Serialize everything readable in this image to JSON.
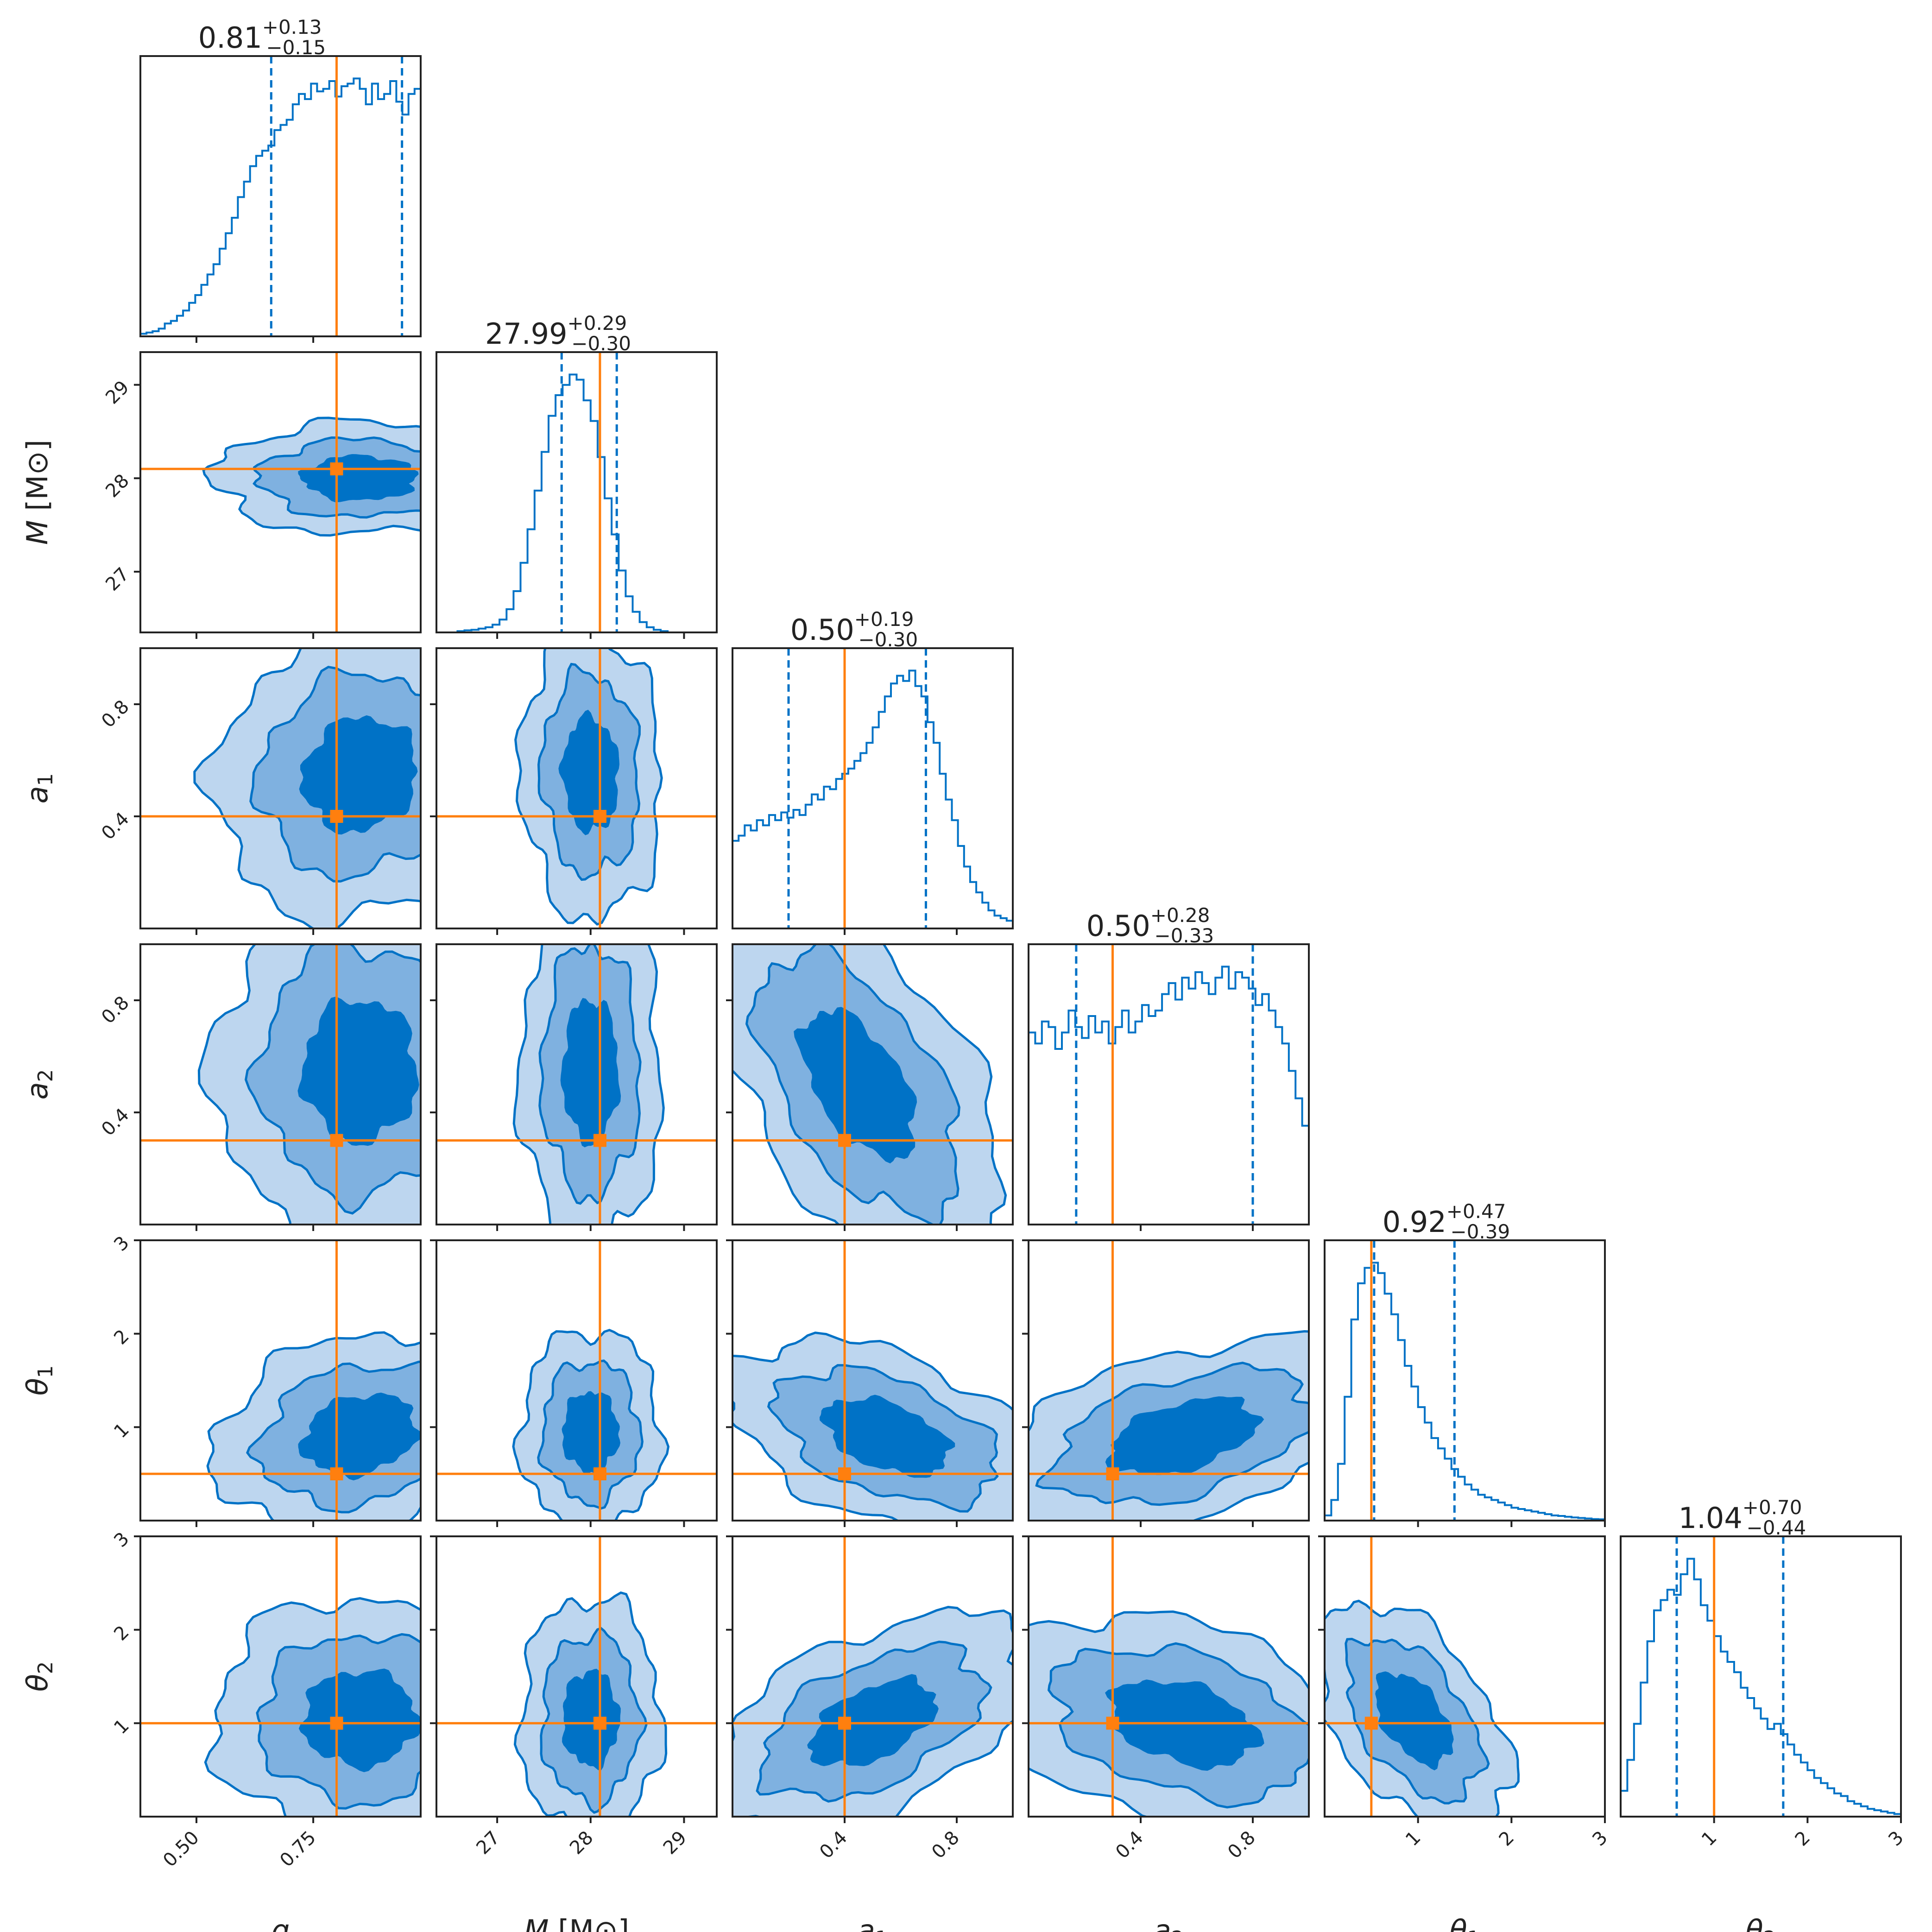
{
  "chart_data": {
    "type": "corner",
    "title": "",
    "colors": {
      "posterior": "#0072c6",
      "level_outer": "#bdd6ef",
      "level_mid": "#7fb1e0",
      "level_inner": "#0072c6",
      "truth": "#ff7f0e",
      "frame": "#222222"
    },
    "parameters": [
      {
        "key": "q",
        "label": "q",
        "subscript": "",
        "unit": "",
        "range": [
          0.38,
          0.98
        ],
        "ticks": [
          0.5,
          0.75
        ],
        "tick_labels": [
          "0.50",
          "0.75"
        ],
        "truth": 0.8,
        "median": 0.81,
        "plus": "+0.13",
        "minus": "−0.15",
        "median_label": "0.81",
        "q16": 0.66,
        "q84": 0.94,
        "show_ytick_labels": false
      },
      {
        "key": "M",
        "label": "M",
        "subscript": "",
        "unit": "[M⊙]",
        "range": [
          26.35,
          29.35
        ],
        "ticks": [
          27,
          28,
          29
        ],
        "tick_labels": [
          "27",
          "28",
          "29"
        ],
        "truth": 28.1,
        "median": 27.99,
        "plus": "+0.29",
        "minus": "−0.30",
        "median_label": "27.99",
        "q16": 27.69,
        "q84": 28.28,
        "show_ytick_labels": true
      },
      {
        "key": "a1",
        "label": "a",
        "subscript": "1",
        "unit": "",
        "range": [
          0.0,
          1.0
        ],
        "ticks": [
          0.4,
          0.8
        ],
        "tick_labels": [
          "0.4",
          "0.8"
        ],
        "truth": 0.4,
        "median": 0.5,
        "plus": "+0.19",
        "minus": "−0.30",
        "median_label": "0.50",
        "q16": 0.2,
        "q84": 0.69,
        "show_ytick_labels": true
      },
      {
        "key": "a2",
        "label": "a",
        "subscript": "2",
        "unit": "",
        "range": [
          0.0,
          1.0
        ],
        "ticks": [
          0.4,
          0.8
        ],
        "tick_labels": [
          "0.4",
          "0.8"
        ],
        "truth": 0.3,
        "median": 0.5,
        "plus": "+0.28",
        "minus": "−0.33",
        "median_label": "0.50",
        "q16": 0.17,
        "q84": 0.8,
        "show_ytick_labels": true
      },
      {
        "key": "theta1",
        "label": "θ",
        "subscript": "1",
        "unit": "",
        "range": [
          0.0,
          3.0
        ],
        "ticks": [
          1,
          2,
          3
        ],
        "tick_labels": [
          "1",
          "2",
          "3"
        ],
        "truth": 0.5,
        "median": 0.92,
        "plus": "+0.47",
        "minus": "−0.39",
        "median_label": "0.92",
        "q16": 0.53,
        "q84": 1.39,
        "show_ytick_labels": true
      },
      {
        "key": "theta2",
        "label": "θ",
        "subscript": "2",
        "unit": "",
        "range": [
          0.0,
          3.0
        ],
        "ticks": [
          1,
          2,
          3
        ],
        "tick_labels": [
          "1",
          "2",
          "3"
        ],
        "truth": 1.0,
        "median": 1.04,
        "plus": "+0.70",
        "minus": "−0.44",
        "median_label": "1.04",
        "q16": 0.6,
        "q84": 1.74,
        "show_ytick_labels": true
      }
    ],
    "histograms": [
      {
        "param": "q",
        "values": [
          0.01,
          0.015,
          0.02,
          0.03,
          0.05,
          0.06,
          0.08,
          0.1,
          0.13,
          0.16,
          0.2,
          0.24,
          0.28,
          0.34,
          0.4,
          0.46,
          0.54,
          0.6,
          0.66,
          0.7,
          0.72,
          0.74,
          0.8,
          0.82,
          0.84,
          0.9,
          0.94,
          0.92,
          0.98,
          0.95,
          0.96,
          0.99,
          0.93,
          0.97,
          0.98,
          1.0,
          0.96,
          0.9,
          0.98,
          0.92,
          0.94,
          0.99,
          0.91,
          0.86,
          0.94,
          0.96
        ]
      },
      {
        "param": "M",
        "values": [
          0.0,
          0.0,
          0.0,
          0.005,
          0.008,
          0.01,
          0.015,
          0.02,
          0.03,
          0.05,
          0.09,
          0.16,
          0.27,
          0.4,
          0.55,
          0.7,
          0.84,
          0.92,
          0.96,
          1.0,
          0.98,
          0.9,
          0.82,
          0.68,
          0.52,
          0.38,
          0.24,
          0.14,
          0.08,
          0.04,
          0.02,
          0.01,
          0.005,
          0.0,
          0.0,
          0.0,
          0.0,
          0.0,
          0.0,
          0.0
        ]
      },
      {
        "param": "a1",
        "values": [
          0.34,
          0.36,
          0.4,
          0.38,
          0.42,
          0.4,
          0.44,
          0.42,
          0.45,
          0.43,
          0.46,
          0.44,
          0.48,
          0.52,
          0.5,
          0.55,
          0.54,
          0.58,
          0.6,
          0.62,
          0.65,
          0.68,
          0.72,
          0.78,
          0.84,
          0.9,
          0.95,
          0.98,
          0.96,
          1.0,
          0.94,
          0.9,
          0.8,
          0.72,
          0.6,
          0.5,
          0.42,
          0.32,
          0.24,
          0.18,
          0.14,
          0.1,
          0.07,
          0.05,
          0.04,
          0.03
        ]
      },
      {
        "param": "a2",
        "values": [
          0.7,
          0.66,
          0.74,
          0.72,
          0.64,
          0.7,
          0.78,
          0.72,
          0.68,
          0.76,
          0.7,
          0.74,
          0.66,
          0.72,
          0.78,
          0.7,
          0.74,
          0.8,
          0.76,
          0.78,
          0.84,
          0.88,
          0.82,
          0.9,
          0.86,
          0.92,
          0.88,
          0.84,
          0.9,
          0.94,
          0.86,
          0.92,
          0.9,
          0.86,
          0.8,
          0.84,
          0.78,
          0.72,
          0.66,
          0.56,
          0.46,
          0.36
        ]
      },
      {
        "param": "theta1",
        "values": [
          0.02,
          0.08,
          0.22,
          0.48,
          0.78,
          0.92,
          0.98,
          1.0,
          0.96,
          0.88,
          0.8,
          0.7,
          0.6,
          0.52,
          0.44,
          0.38,
          0.32,
          0.28,
          0.24,
          0.2,
          0.17,
          0.14,
          0.12,
          0.1,
          0.09,
          0.08,
          0.07,
          0.06,
          0.05,
          0.045,
          0.04,
          0.035,
          0.03,
          0.025,
          0.02,
          0.018,
          0.015,
          0.012,
          0.01,
          0.008,
          0.006,
          0.005
        ]
      },
      {
        "param": "theta2",
        "values": [
          0.1,
          0.22,
          0.36,
          0.52,
          0.68,
          0.8,
          0.84,
          0.88,
          0.86,
          0.94,
          1.0,
          0.92,
          0.82,
          0.76,
          0.7,
          0.64,
          0.6,
          0.56,
          0.5,
          0.46,
          0.42,
          0.38,
          0.34,
          0.36,
          0.32,
          0.28,
          0.24,
          0.21,
          0.18,
          0.15,
          0.13,
          0.11,
          0.09,
          0.08,
          0.06,
          0.05,
          0.04,
          0.03,
          0.025,
          0.02,
          0.015,
          0.01
        ]
      }
    ],
    "pairs": [
      {
        "x": "q",
        "y": "M",
        "center": [
          0.85,
          28.0
        ],
        "spread": [
          0.12,
          0.23
        ],
        "rho": 0.0
      },
      {
        "x": "q",
        "y": "a1",
        "center": [
          0.85,
          0.55
        ],
        "spread": [
          0.12,
          0.2
        ],
        "rho": 0.1
      },
      {
        "x": "M",
        "y": "a1",
        "center": [
          28.0,
          0.55
        ],
        "spread": [
          0.29,
          0.2
        ],
        "rho": -0.05
      },
      {
        "x": "q",
        "y": "a2",
        "center": [
          0.85,
          0.55
        ],
        "spread": [
          0.12,
          0.25
        ],
        "rho": 0.0
      },
      {
        "x": "M",
        "y": "a2",
        "center": [
          28.0,
          0.55
        ],
        "spread": [
          0.29,
          0.25
        ],
        "rho": 0.0
      },
      {
        "x": "a1",
        "y": "a2",
        "center": [
          0.45,
          0.5
        ],
        "spread": [
          0.2,
          0.26
        ],
        "rho": -0.55
      },
      {
        "x": "q",
        "y": "theta1",
        "center": [
          0.85,
          0.92
        ],
        "spread": [
          0.12,
          0.42
        ],
        "rho": 0.2
      },
      {
        "x": "M",
        "y": "theta1",
        "center": [
          28.0,
          0.95
        ],
        "spread": [
          0.29,
          0.42
        ],
        "rho": 0.0
      },
      {
        "x": "a1",
        "y": "theta1",
        "center": [
          0.55,
          0.9
        ],
        "spread": [
          0.22,
          0.4
        ],
        "rho": -0.45
      },
      {
        "x": "a2",
        "y": "theta1",
        "center": [
          0.55,
          0.9
        ],
        "spread": [
          0.26,
          0.4
        ],
        "rho": 0.45
      },
      {
        "x": "q",
        "y": "theta2",
        "center": [
          0.85,
          1.05
        ],
        "spread": [
          0.12,
          0.5
        ],
        "rho": 0.0
      },
      {
        "x": "M",
        "y": "theta2",
        "center": [
          28.0,
          1.05
        ],
        "spread": [
          0.29,
          0.5
        ],
        "rho": 0.0
      },
      {
        "x": "a1",
        "y": "theta2",
        "center": [
          0.5,
          1.0
        ],
        "spread": [
          0.22,
          0.45
        ],
        "rho": 0.5
      },
      {
        "x": "a2",
        "y": "theta2",
        "center": [
          0.55,
          1.0
        ],
        "spread": [
          0.26,
          0.45
        ],
        "rho": -0.35
      },
      {
        "x": "theta1",
        "y": "theta2",
        "center": [
          0.95,
          1.05
        ],
        "spread": [
          0.4,
          0.48
        ],
        "rho": -0.5
      }
    ],
    "contour_levels_sigma": [
      1.0,
      1.8,
      2.6
    ]
  }
}
